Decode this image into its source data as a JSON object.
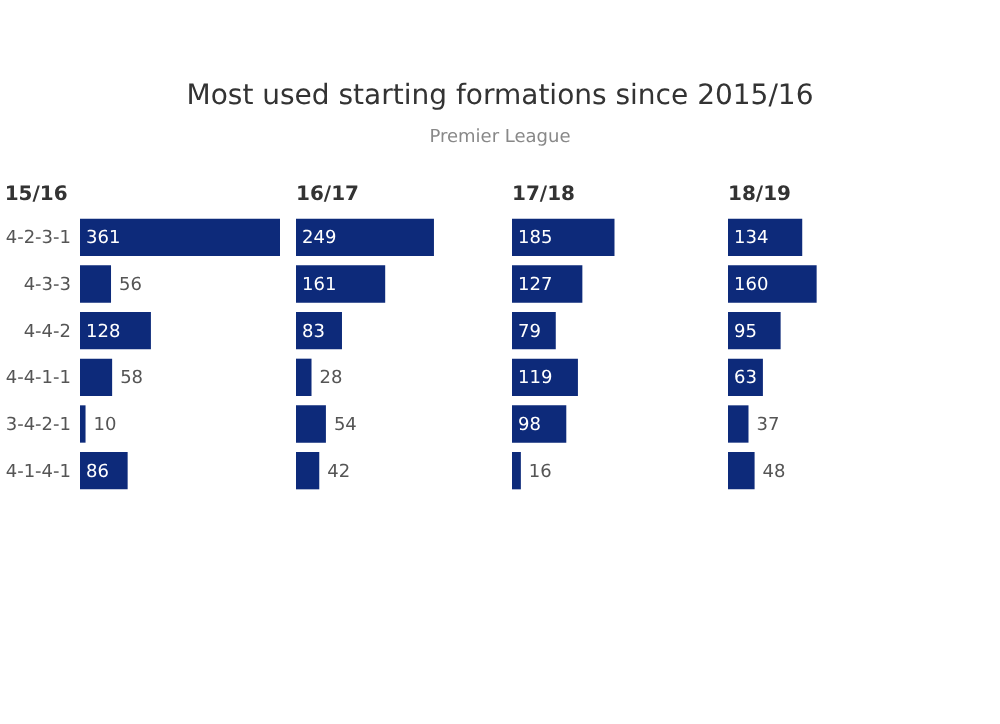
{
  "chart_data": [
    {
      "type": "other",
      "title": "Most used starting formations since 2015/16",
      "subtitle": "Premier League"
    },
    {
      "type": "bar",
      "orientation": "horizontal",
      "title": "15/16",
      "categories": [
        "4-2-3-1",
        "4-3-3",
        "4-4-2",
        "4-4-1-1",
        "3-4-2-1",
        "4-1-4-1"
      ],
      "values": [
        361,
        56,
        128,
        58,
        10,
        86
      ],
      "color": "#0d2a7a",
      "data_labels": true,
      "tick_labels": "y"
    },
    {
      "type": "bar",
      "orientation": "horizontal",
      "title": "16/17",
      "categories": [
        "4-2-3-1",
        "4-3-3",
        "4-4-2",
        "4-4-1-1",
        "3-4-2-1",
        "4-1-4-1"
      ],
      "values": [
        249,
        161,
        83,
        28,
        54,
        42
      ],
      "color": "#0d2a7a",
      "data_labels": true,
      "tick_labels": false
    },
    {
      "type": "bar",
      "orientation": "horizontal",
      "title": "17/18",
      "categories": [
        "4-2-3-1",
        "4-3-3",
        "4-4-2",
        "4-4-1-1",
        "3-4-2-1",
        "4-1-4-1"
      ],
      "values": [
        185,
        127,
        79,
        119,
        98,
        16
      ],
      "color": "#0d2a7a",
      "data_labels": true,
      "tick_labels": false
    },
    {
      "type": "bar",
      "orientation": "horizontal",
      "title": "18/19",
      "categories": [
        "4-2-3-1",
        "4-3-3",
        "4-4-2",
        "4-4-1-1",
        "3-4-2-1",
        "4-1-4-1"
      ],
      "values": [
        134,
        160,
        95,
        63,
        37,
        48
      ],
      "color": "#0d2a7a",
      "data_labels": true,
      "tick_labels": false
    }
  ]
}
